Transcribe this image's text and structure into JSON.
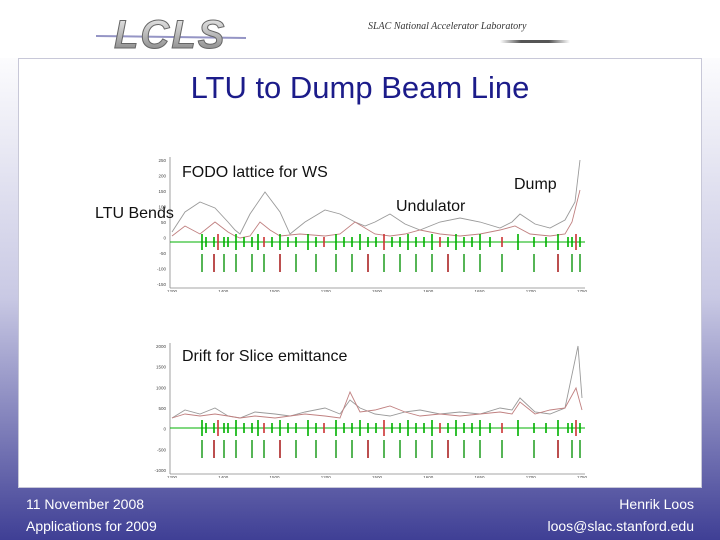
{
  "header": {
    "lab": "SLAC National Accelerator Laboratory"
  },
  "slide": {
    "title": "LTU to Dump Beam Line"
  },
  "annotations": {
    "fodo": "FODO lattice for WS",
    "ltu_bends": "LTU Bends",
    "undulator": "Undulator",
    "dump": "Dump",
    "drift": "Drift for Slice emittance"
  },
  "plots": {
    "top_y_ticks": [
      "250",
      "200",
      "150",
      "100",
      "50",
      "0",
      "-50",
      "-100",
      "-150"
    ],
    "top_x_ticks": [
      "1200",
      "1400",
      "1500",
      "1200",
      "1500",
      "1600",
      "1650",
      "1700",
      "1750"
    ],
    "bottom_y_ticks": [
      "2000",
      "1500",
      "1000",
      "500",
      "0",
      "-500",
      "-1000"
    ],
    "bottom_x_ticks": [
      "1200",
      "1400",
      "1500",
      "1200",
      "1500",
      "1600",
      "1650",
      "1700",
      "1750"
    ]
  },
  "footer": {
    "date": "11 November 2008",
    "topic": "Applications for 2009",
    "author": "Henrik Loos",
    "email": "loos@slac.stanford.edu"
  },
  "colors": {
    "title": "#1c1c8a",
    "beta_x": "#9a9a9a",
    "beta_y": "#c08080",
    "quad": "#00b000",
    "label": "#00a000"
  }
}
